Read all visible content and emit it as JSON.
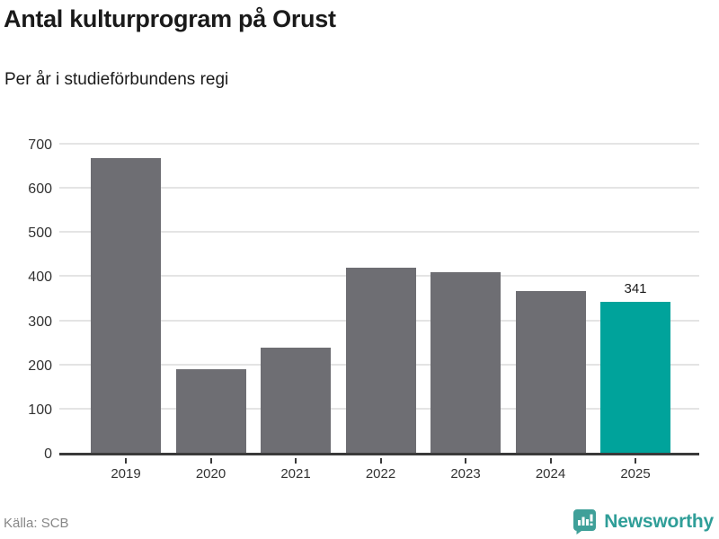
{
  "header": {
    "title": "Antal kulturprogram på Orust",
    "subtitle": "Per år i studieförbundens regi"
  },
  "chart_data": {
    "type": "bar",
    "title": "Antal kulturprogram på Orust",
    "subtitle": "Per år i studieförbundens regi",
    "categories": [
      "2019",
      "2020",
      "2021",
      "2022",
      "2023",
      "2024",
      "2025"
    ],
    "values": [
      667,
      190,
      238,
      420,
      409,
      366,
      341
    ],
    "highlight_index": 6,
    "annotations": [
      {
        "index": 6,
        "text": "341"
      }
    ],
    "xlabel": "",
    "ylabel": "",
    "ylim": [
      0,
      700
    ],
    "yticks": [
      0,
      100,
      200,
      300,
      400,
      500,
      600,
      700
    ],
    "grid": true,
    "legend": "none",
    "colors": {
      "bar": "#6e6e73",
      "highlight": "#00a39b",
      "gridline": "#e4e4e4",
      "axis": "#3a3a3a",
      "text": "#333333"
    }
  },
  "footer": {
    "source": "Källa: SCB",
    "brand": "Newsworthy",
    "brand_color": "#2f9e98",
    "logo_color": "#3fa099"
  }
}
